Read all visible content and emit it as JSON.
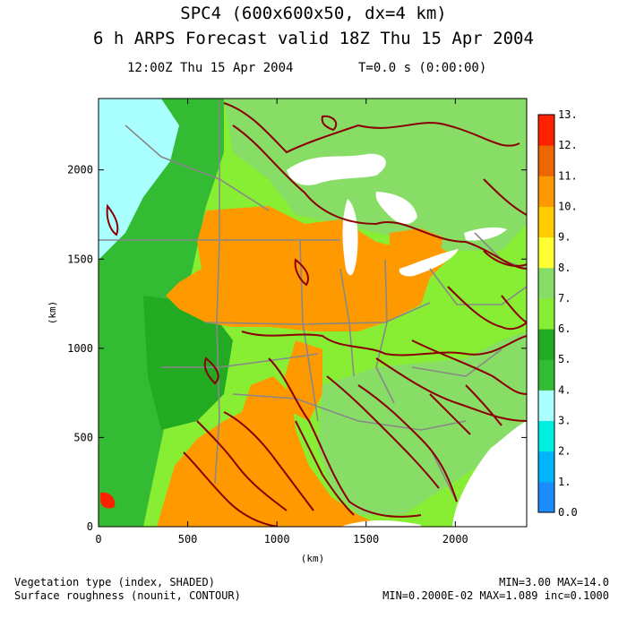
{
  "title": {
    "line1": "SPC4 (600x600x50, dx=4 km)",
    "line2": "6 h ARPS Forecast valid 18Z Thu 15 Apr 2004"
  },
  "subtitle": {
    "time": "12:00Z Thu 15 Apr 2004",
    "t_value": "T=0.0 s (0:00:00)"
  },
  "chart_data": {
    "type": "heatmap",
    "xlabel": "(km)",
    "ylabel": "(km)",
    "xlim": [
      0,
      2400
    ],
    "ylim": [
      0,
      2400
    ],
    "x_ticks": [
      "0",
      "500",
      "1000",
      "1500",
      "2000"
    ],
    "y_ticks": [
      "0",
      "500",
      "1000",
      "1500",
      "2000"
    ],
    "colorbar": {
      "labels": [
        "0.0",
        "1.",
        "2.",
        "3.",
        "4.",
        "5.",
        "6.",
        "7.",
        "8.",
        "9.",
        "10.",
        "11.",
        "12.",
        "13."
      ],
      "colors": [
        "#1a8cff",
        "#00b4ff",
        "#00eedd",
        "#aaffff",
        "#33bb33",
        "#22aa22",
        "#88ee33",
        "#88dd66",
        "#ffff33",
        "#ffcc00",
        "#ff9900",
        "#ee6600",
        "#ff2200"
      ]
    },
    "shaded_field": "Vegetation type (index, SHADED)",
    "contour_field": "Surface roughness (nounit, CONTOUR)",
    "shaded_stats": "MIN=3.00 MAX=14.0",
    "contour_stats": "MIN=0.2000E-02 MAX=1.089 inc=0.1000"
  }
}
